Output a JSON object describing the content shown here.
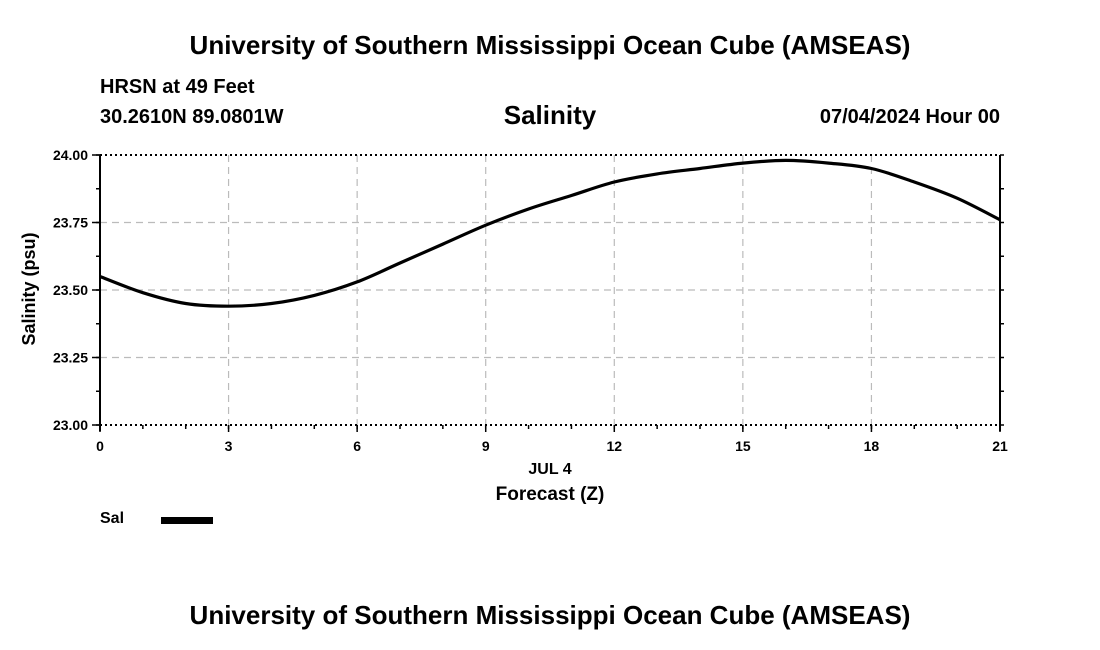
{
  "header": {
    "title": "University of Southern Mississippi Ocean Cube (AMSEAS)",
    "station": "HRSN at 49 Feet",
    "coords": "30.2610N  89.0801W",
    "datetime": "07/04/2024 Hour 00"
  },
  "footer": {
    "title": "University of Southern Mississippi Ocean Cube (AMSEAS)"
  },
  "legend": {
    "label": "Sal"
  },
  "colors": {
    "line": "#000000",
    "grid": "#bbbbbb"
  },
  "chart_data": {
    "type": "line",
    "title": "Salinity",
    "xlabel": "Forecast (Z)",
    "xsublabel": "JUL 4",
    "ylabel": "Salinity (psu)",
    "xlim": [
      0,
      21
    ],
    "ylim": [
      23.0,
      24.0
    ],
    "xticks": [
      0,
      3,
      6,
      9,
      12,
      15,
      18,
      21
    ],
    "yticks": [
      23.0,
      23.25,
      23.5,
      23.75,
      24.0
    ],
    "ytick_labels": [
      "23.00",
      "23.25",
      "23.50",
      "23.75",
      "24.00"
    ],
    "grid": true,
    "series": [
      {
        "name": "Sal",
        "x": [
          0,
          1,
          2,
          3,
          4,
          5,
          6,
          7,
          8,
          9,
          10,
          11,
          12,
          13,
          14,
          15,
          16,
          17,
          18,
          19,
          20,
          21
        ],
        "y": [
          23.55,
          23.49,
          23.45,
          23.44,
          23.45,
          23.48,
          23.53,
          23.6,
          23.67,
          23.74,
          23.8,
          23.85,
          23.9,
          23.93,
          23.95,
          23.97,
          23.98,
          23.97,
          23.95,
          23.9,
          23.84,
          23.76
        ]
      }
    ]
  }
}
